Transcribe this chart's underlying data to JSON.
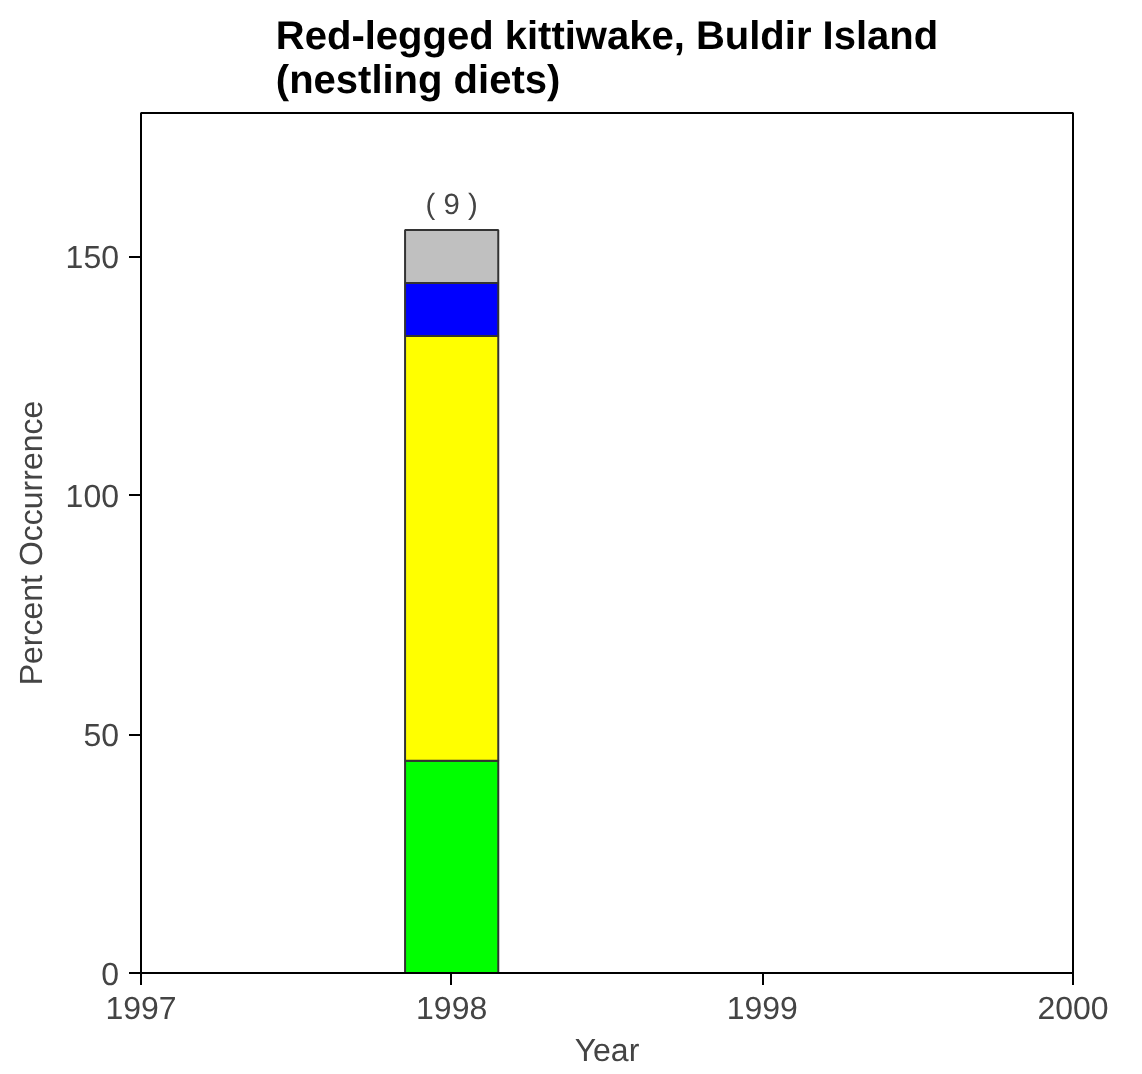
{
  "chart_data": {
    "type": "bar",
    "stacked": true,
    "title": "Red-legged kittiwake, Buldir Island\n(nestling diets)",
    "xlabel": "Year",
    "ylabel": "Percent Occurrence",
    "x": [
      1998
    ],
    "series": [
      {
        "color": "#00ff00",
        "values": [
          44.4
        ]
      },
      {
        "color": "#ffff00",
        "values": [
          88.9
        ]
      },
      {
        "color": "#0000ff",
        "values": [
          11.1
        ]
      },
      {
        "color": "#c0c0c0",
        "values": [
          11.1
        ]
      }
    ],
    "annotations": [
      {
        "text": "( 9 )",
        "x": 1998,
        "y": 155.5
      }
    ],
    "xlim": [
      1997,
      2000
    ],
    "xticks": [
      1997,
      1998,
      1999,
      2000
    ],
    "ylim": [
      0,
      180
    ],
    "yticks": [
      0,
      50,
      100,
      150
    ],
    "grid": false
  }
}
